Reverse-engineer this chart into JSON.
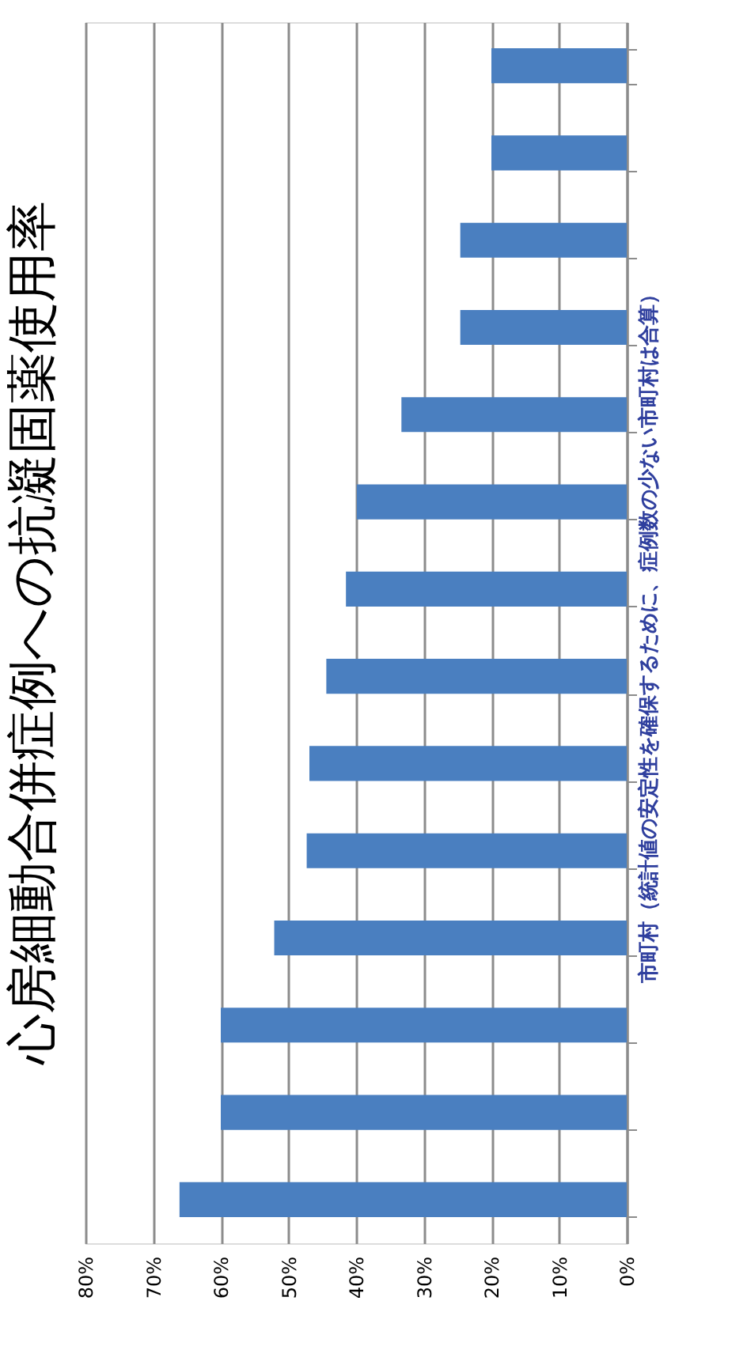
{
  "chart_data": {
    "type": "bar",
    "orientation": "horizontal",
    "title": "心房細動合併症例への抗凝固薬使用率",
    "ylabel": "市町村（統計値の安定性を確保するために、症例数の少ない市町村は合算）",
    "categories": [
      null,
      null,
      null,
      null,
      null,
      null,
      null,
      null,
      null,
      null,
      null,
      null,
      null,
      null
    ],
    "values": [
      20,
      20,
      24.6,
      24.6,
      33.3,
      39.9,
      41.5,
      44.4,
      46.9,
      47.3,
      52.1,
      60,
      60,
      66.1
    ],
    "color": "#4a7fc0",
    "xlim": [
      80,
      0
    ],
    "xticks": [
      {
        "value": 80,
        "label": "80%"
      },
      {
        "value": 70,
        "label": "70%"
      },
      {
        "value": 60,
        "label": "60%"
      },
      {
        "value": 50,
        "label": "50%"
      },
      {
        "value": 40,
        "label": "40%"
      },
      {
        "value": 30,
        "label": "30%"
      },
      {
        "value": 20,
        "label": "20%"
      },
      {
        "value": 10,
        "label": "10%"
      },
      {
        "value": 0,
        "label": "0%"
      }
    ],
    "grid": "x",
    "tick_labels": "x"
  }
}
